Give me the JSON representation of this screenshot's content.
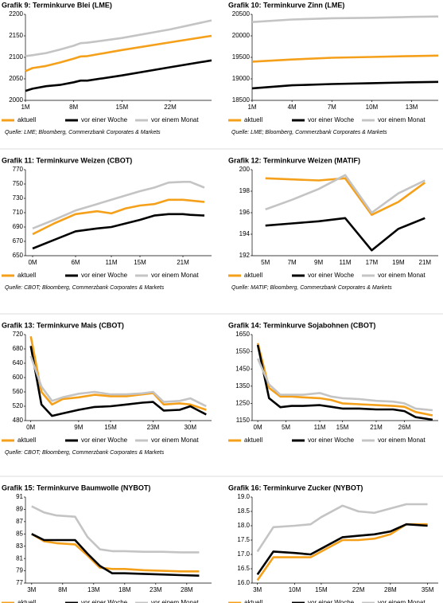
{
  "chart_data": [
    {
      "type": "line",
      "title": "Grafik 9: Terminkurve Blei (LME)",
      "source": "Quelle: LME; Bloomberg, Commerzbank Corporates & Markets",
      "x": [
        1,
        2,
        4,
        6,
        8,
        9,
        10,
        15,
        22,
        28
      ],
      "xlim": [
        1,
        28
      ],
      "xticks": [
        {
          "value": 1,
          "label": "1M"
        },
        {
          "value": 8,
          "label": "8M"
        },
        {
          "value": 15,
          "label": "15M"
        },
        {
          "value": 22,
          "label": "22M"
        }
      ],
      "ylim": [
        2000,
        2200
      ],
      "yticks": [
        2000,
        2050,
        2100,
        2150,
        2200
      ],
      "series": [
        {
          "name": "aktuell",
          "color": "#f5a01a",
          "values": [
            2068,
            2075,
            2080,
            2088,
            2097,
            2102,
            2103,
            2117,
            2135,
            2150
          ]
        },
        {
          "name": "vor einer Woche",
          "color": "#000000",
          "values": [
            2022,
            2027,
            2033,
            2036,
            2042,
            2046,
            2046,
            2058,
            2077,
            2093
          ]
        },
        {
          "name": "vor einem Monat",
          "color": "#c4c4c4",
          "values": [
            2103,
            2105,
            2110,
            2118,
            2127,
            2133,
            2134,
            2145,
            2165,
            2186
          ]
        }
      ]
    },
    {
      "type": "line",
      "title": "Grafik 10: Terminkurve Zinn (LME)",
      "source": "Quelle: LME; Bloomberg, Commerzbank Corporates & Markets",
      "x": [
        1,
        4,
        7,
        10,
        13,
        15
      ],
      "xlim": [
        1,
        15
      ],
      "xticks": [
        {
          "value": 1,
          "label": "1M"
        },
        {
          "value": 4,
          "label": "4M"
        },
        {
          "value": 7,
          "label": "7M"
        },
        {
          "value": 10,
          "label": "10M"
        },
        {
          "value": 13,
          "label": "13M"
        }
      ],
      "ylim": [
        18500,
        20500
      ],
      "yticks": [
        18500,
        19000,
        19500,
        20000,
        20500
      ],
      "series": [
        {
          "name": "aktuell",
          "color": "#f5a01a",
          "values": [
            19400,
            19450,
            19490,
            19510,
            19530,
            19540
          ]
        },
        {
          "name": "vor einer Woche",
          "color": "#000000",
          "values": [
            18780,
            18850,
            18880,
            18900,
            18920,
            18930
          ]
        },
        {
          "name": "vor einem Monat",
          "color": "#c4c4c4",
          "values": [
            20320,
            20380,
            20410,
            20420,
            20440,
            20450
          ]
        }
      ]
    },
    {
      "type": "line",
      "title": "Grafik 11: Terminkurve Weizen (CBOT)",
      "source": "Quelle: CBOT; Bloomberg, Commerzbank Corporates & Markets",
      "x": [
        0,
        3,
        6,
        9,
        11,
        13,
        15,
        17,
        19,
        21,
        22,
        24
      ],
      "xlim": [
        -1,
        25
      ],
      "xticks": [
        {
          "value": 0,
          "label": "0M"
        },
        {
          "value": 6,
          "label": "6M"
        },
        {
          "value": 11,
          "label": "11M"
        },
        {
          "value": 15,
          "label": "15M"
        },
        {
          "value": 21,
          "label": "21M"
        }
      ],
      "ylim": [
        650,
        770
      ],
      "yticks": [
        650,
        670,
        690,
        710,
        730,
        750,
        770
      ],
      "series": [
        {
          "name": "aktuell",
          "color": "#f5a01a",
          "values": [
            680,
            695,
            708,
            712,
            709,
            716,
            720,
            722,
            728,
            728,
            727,
            725
          ]
        },
        {
          "name": "vor einer Woche",
          "color": "#000000",
          "values": [
            660,
            672,
            684,
            688,
            690,
            695,
            700,
            706,
            708,
            708,
            707,
            706
          ]
        },
        {
          "name": "vor einem Monat",
          "color": "#c4c4c4",
          "values": [
            688,
            700,
            713,
            722,
            728,
            734,
            740,
            745,
            752,
            753,
            753,
            745
          ]
        }
      ]
    },
    {
      "type": "line",
      "title": "Grafik 12: Terminkurve Weizen (MATIF)",
      "source": "Quelle: MATIF; Bloomberg, Commerzbank Corporates & Markets",
      "categories": [
        "5M",
        "7M",
        "9M",
        "11M",
        "17M",
        "19M",
        "21M"
      ],
      "ylim": [
        192,
        200
      ],
      "yticks": [
        192,
        194,
        196,
        198,
        200
      ],
      "series": [
        {
          "name": "aktuell",
          "color": "#f5a01a",
          "values": [
            199.2,
            199.1,
            199.0,
            199.2,
            195.8,
            197.0,
            198.8
          ]
        },
        {
          "name": "vor einer Woche",
          "color": "#000000",
          "values": [
            194.8,
            195.0,
            195.2,
            195.5,
            192.5,
            194.5,
            195.5
          ]
        },
        {
          "name": "vor einem Monat",
          "color": "#c4c4c4",
          "values": [
            196.3,
            197.2,
            198.2,
            199.5,
            196.0,
            197.8,
            199.0
          ]
        }
      ]
    },
    {
      "type": "line",
      "title": "Grafik 13: Terminkurve Mais (CBOT)",
      "source": "Quelle: CBOT; Bloomberg, Commerzbank Corporates & Markets",
      "x": [
        0,
        2,
        4,
        6,
        9,
        12,
        15,
        18,
        21,
        23,
        25,
        28,
        30,
        33
      ],
      "xlim": [
        -1,
        34
      ],
      "xticks": [
        {
          "value": 0,
          "label": "0M"
        },
        {
          "value": 9,
          "label": "9M"
        },
        {
          "value": 15,
          "label": "15M"
        },
        {
          "value": 23,
          "label": "23M"
        },
        {
          "value": 30,
          "label": "30M"
        }
      ],
      "ylim": [
        480,
        720
      ],
      "yticks": [
        480,
        520,
        560,
        600,
        640,
        680,
        720
      ],
      "series": [
        {
          "name": "aktuell",
          "color": "#f5a01a",
          "values": [
            715,
            560,
            525,
            540,
            545,
            552,
            548,
            548,
            553,
            557,
            525,
            528,
            525,
            510
          ]
        },
        {
          "name": "vor einer Woche",
          "color": "#000000",
          "values": [
            688,
            525,
            493,
            500,
            510,
            518,
            520,
            525,
            530,
            532,
            508,
            510,
            520,
            497
          ]
        },
        {
          "name": "vor einem Monat",
          "color": "#c4c4c4",
          "values": [
            660,
            575,
            535,
            545,
            555,
            560,
            553,
            553,
            556,
            560,
            532,
            535,
            542,
            520
          ]
        }
      ]
    },
    {
      "type": "line",
      "title": "Grafik 14: Terminkurve Sojabohnen (CBOT)",
      "x": [
        0,
        2,
        4,
        6,
        8,
        11,
        13,
        15,
        18,
        21,
        24,
        26,
        28,
        31
      ],
      "xlim": [
        -1,
        32
      ],
      "xticks": [
        {
          "value": 0,
          "label": "0M"
        },
        {
          "value": 5,
          "label": "5M"
        },
        {
          "value": 11,
          "label": "11M"
        },
        {
          "value": 15,
          "label": "15M"
        },
        {
          "value": 21,
          "label": "21M"
        },
        {
          "value": 26,
          "label": "26M"
        }
      ],
      "ylim": [
        1150,
        1650
      ],
      "yticks": [
        1150,
        1250,
        1350,
        1450,
        1550,
        1650
      ],
      "series": [
        {
          "name": "aktuell",
          "color": "#f5a01a",
          "values": [
            1600,
            1340,
            1290,
            1290,
            1285,
            1280,
            1270,
            1250,
            1245,
            1240,
            1235,
            1230,
            1200,
            1180
          ]
        },
        {
          "name": "vor einer Woche",
          "color": "#000000",
          "values": [
            1590,
            1280,
            1228,
            1235,
            1235,
            1240,
            1230,
            1220,
            1220,
            1215,
            1215,
            1205,
            1170,
            1155
          ]
        },
        {
          "name": "vor einem Monat",
          "color": "#c4c4c4",
          "values": [
            1510,
            1360,
            1300,
            1300,
            1300,
            1310,
            1290,
            1280,
            1275,
            1265,
            1260,
            1250,
            1220,
            1210
          ]
        }
      ]
    },
    {
      "type": "line",
      "title": "Grafik 15: Terminkurve Baumwolle (NYBOT)",
      "source": "Quelle: NYBOT; Bloomberg, Commerzbank Corporates & Markets",
      "x": [
        3,
        5,
        7,
        10,
        12,
        14,
        16,
        18,
        21,
        24,
        27,
        30
      ],
      "xlim": [
        2,
        32
      ],
      "xticks": [
        {
          "value": 3,
          "label": "3M"
        },
        {
          "value": 8,
          "label": "8M"
        },
        {
          "value": 13,
          "label": "13M"
        },
        {
          "value": 18,
          "label": "18M"
        },
        {
          "value": 23,
          "label": "23M"
        },
        {
          "value": 28,
          "label": "28M"
        }
      ],
      "ylim": [
        77,
        91
      ],
      "yticks": [
        77,
        79,
        81,
        83,
        85,
        87,
        89,
        91
      ],
      "series": [
        {
          "name": "aktuell",
          "color": "#f5a01a",
          "values": [
            85,
            83.8,
            83.5,
            83.3,
            81.5,
            79.5,
            79.3,
            79.3,
            79.1,
            79.0,
            78.9,
            78.9
          ]
        },
        {
          "name": "vor einer Woche",
          "color": "#000000",
          "values": [
            85,
            84,
            84,
            84,
            81.8,
            79.8,
            78.6,
            78.6,
            78.5,
            78.4,
            78.3,
            78.2
          ]
        },
        {
          "name": "vor einem Monat",
          "color": "#c4c4c4",
          "values": [
            89.5,
            88.5,
            88,
            87.8,
            84.5,
            82.5,
            82.2,
            82.2,
            82.1,
            82.1,
            82.0,
            82.0
          ]
        }
      ]
    },
    {
      "type": "line",
      "title": "Grafik 16: Terminkurve Zucker (NYBOT)",
      "source": "Quelle: NYBOT; Bloomberg, Commerzbank Corporates & Markets",
      "x": [
        3,
        6,
        10,
        13,
        15,
        19,
        22,
        25,
        28,
        31,
        35
      ],
      "xlim": [
        2,
        37
      ],
      "xticks": [
        {
          "value": 3,
          "label": "3M"
        },
        {
          "value": 10,
          "label": "10M"
        },
        {
          "value": 15,
          "label": "15M"
        },
        {
          "value": 22,
          "label": "22M"
        },
        {
          "value": 28,
          "label": "28M"
        },
        {
          "value": 35,
          "label": "35M"
        }
      ],
      "ylim": [
        16,
        19
      ],
      "yticks": [
        {
          "value": 16,
          "label": "16.0"
        },
        {
          "value": 16.5,
          "label": "16.5"
        },
        {
          "value": 17,
          "label": "17.0"
        },
        {
          "value": 17.5,
          "label": "17.5"
        },
        {
          "value": 18,
          "label": "18.0"
        },
        {
          "value": 18.5,
          "label": "18.5"
        },
        {
          "value": 19,
          "label": "19.0"
        }
      ],
      "series": [
        {
          "name": "aktuell",
          "color": "#f5a01a",
          "values": [
            16.1,
            16.9,
            16.9,
            16.9,
            17.1,
            17.5,
            17.5,
            17.55,
            17.7,
            18.05,
            18.05
          ]
        },
        {
          "name": "vor einer Woche",
          "color": "#000000",
          "values": [
            16.3,
            17.1,
            17.05,
            17.0,
            17.2,
            17.6,
            17.65,
            17.7,
            17.8,
            18.05,
            18.0
          ]
        },
        {
          "name": "vor einem Monat",
          "color": "#c4c4c4",
          "values": [
            17.1,
            17.95,
            18.0,
            18.05,
            18.3,
            18.7,
            18.5,
            18.45,
            18.6,
            18.75,
            18.75
          ]
        }
      ]
    }
  ]
}
